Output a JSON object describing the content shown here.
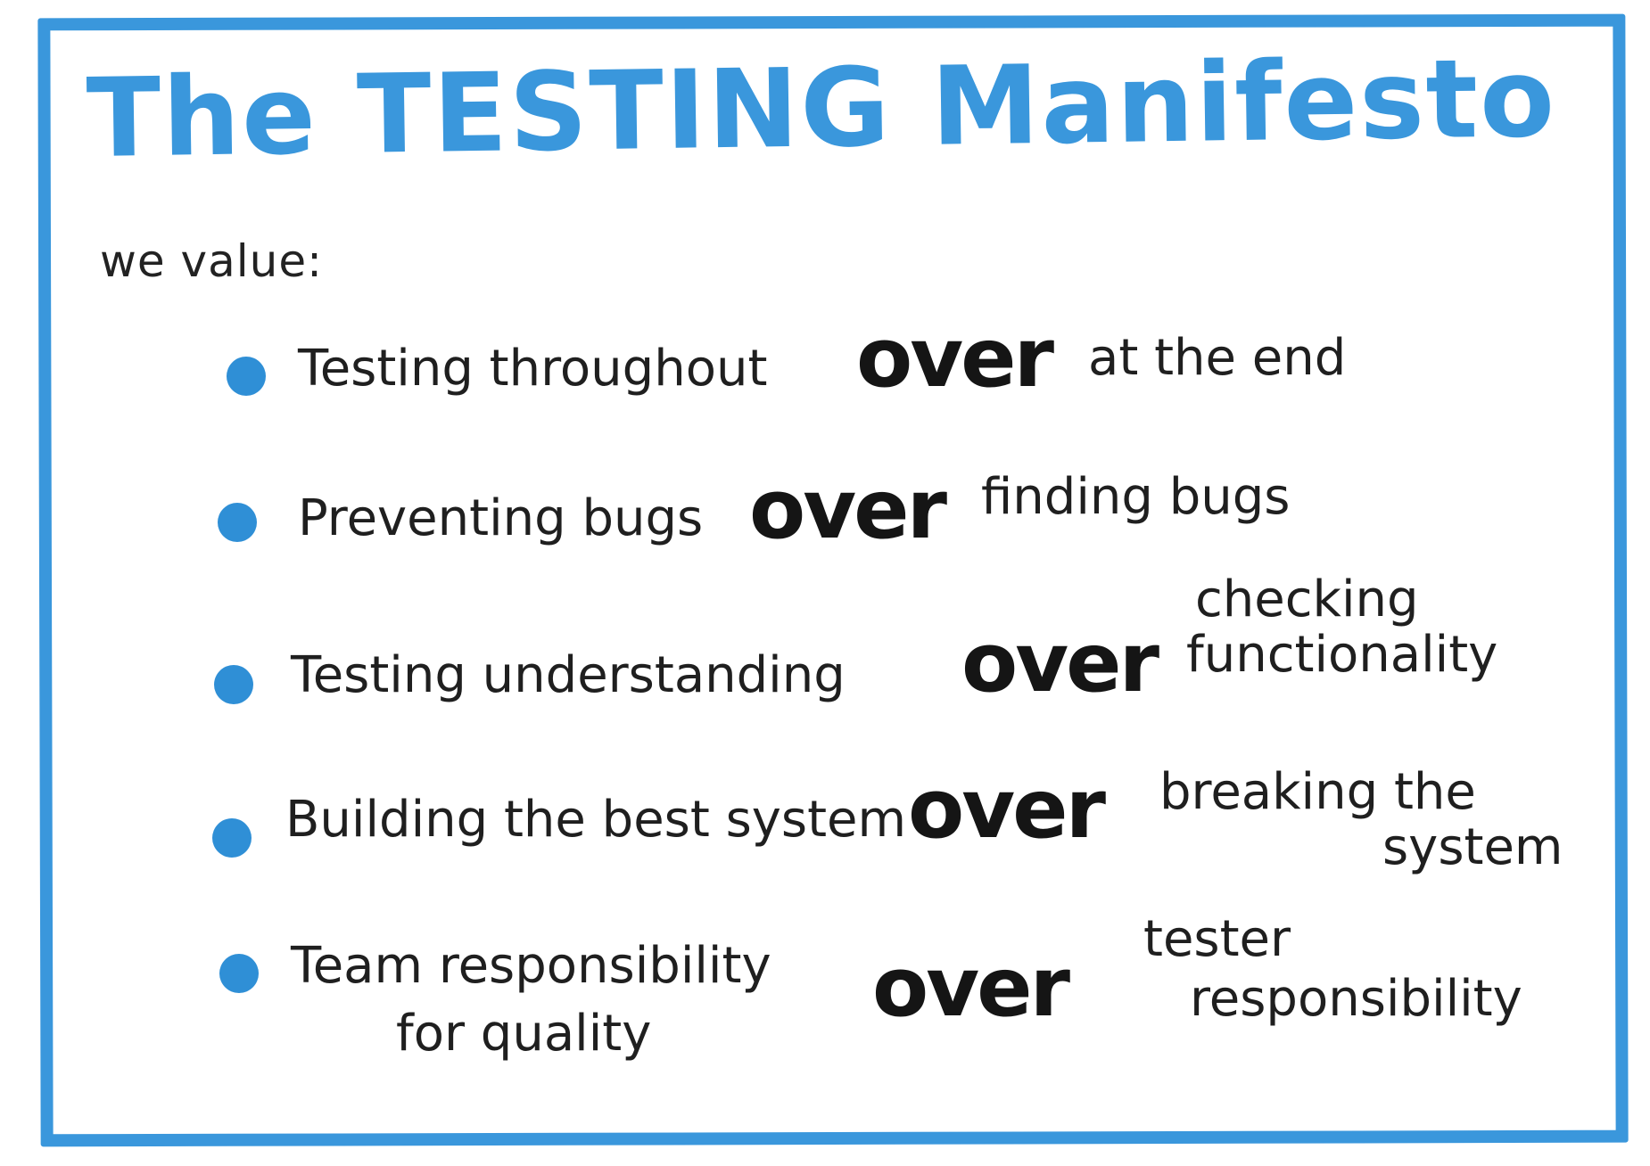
{
  "colors": {
    "accent": "#3a97dc",
    "bullet": "#2f8fd6",
    "ink": "#1f1f1f"
  },
  "title": "The TESTING Manifesto",
  "intro": "we value:",
  "values": [
    {
      "left": "Testing throughout",
      "connector": "over",
      "right": [
        "at the end"
      ]
    },
    {
      "left": "Preventing bugs",
      "connector": "over",
      "right": [
        "finding bugs"
      ]
    },
    {
      "left": "Testing understanding",
      "connector": "over",
      "right": [
        "checking",
        "functionality"
      ]
    },
    {
      "left": "Building the best system",
      "connector": "over",
      "right": [
        "breaking the",
        "system"
      ]
    },
    {
      "left_lines": [
        "Team responsibility",
        "for quality"
      ],
      "connector": "over",
      "right": [
        "tester",
        "responsibility"
      ]
    }
  ]
}
